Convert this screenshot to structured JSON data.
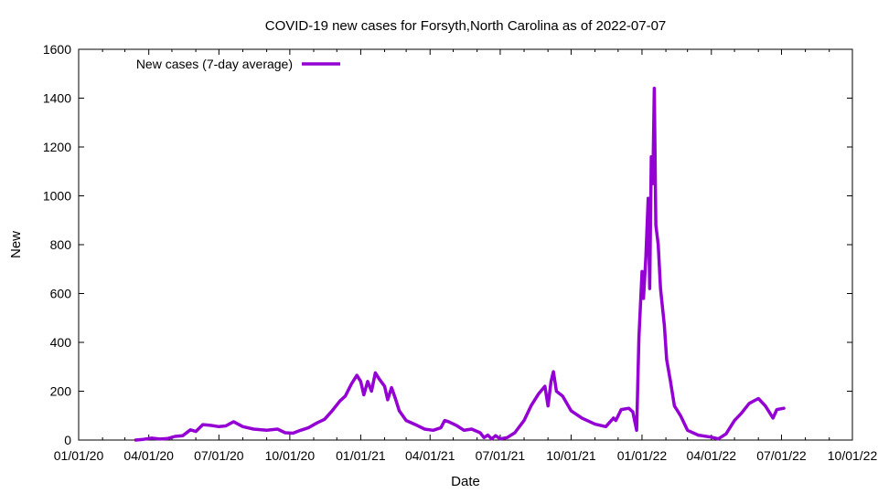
{
  "chart_data": {
    "type": "line",
    "title": "COVID-19 new cases for Forsyth,North Carolina as of 2022-07-07",
    "xlabel": "Date",
    "ylabel": "New",
    "xlim": [
      "2020-01-01",
      "2022-10-01"
    ],
    "ylim": [
      0,
      1600
    ],
    "x_ticks": [
      {
        "date": "2020-01-01",
        "label": "01/01/20"
      },
      {
        "date": "2020-04-01",
        "label": "04/01/20"
      },
      {
        "date": "2020-07-01",
        "label": "07/01/20"
      },
      {
        "date": "2020-10-01",
        "label": "10/01/20"
      },
      {
        "date": "2021-01-01",
        "label": "01/01/21"
      },
      {
        "date": "2021-04-01",
        "label": "04/01/21"
      },
      {
        "date": "2021-07-01",
        "label": "07/01/21"
      },
      {
        "date": "2021-10-01",
        "label": "10/01/21"
      },
      {
        "date": "2022-01-01",
        "label": "01/01/22"
      },
      {
        "date": "2022-04-01",
        "label": "04/01/22"
      },
      {
        "date": "2022-07-01",
        "label": "07/01/22"
      },
      {
        "date": "2022-10-01",
        "label": "10/01/22"
      }
    ],
    "y_ticks": [
      0,
      200,
      400,
      600,
      800,
      1000,
      1200,
      1400,
      1600
    ],
    "grid": false,
    "legend": {
      "position": "top-left"
    },
    "series": [
      {
        "name": "New cases (7-day average)",
        "color": "#9400d3",
        "points": [
          [
            "2020-03-15",
            0
          ],
          [
            "2020-03-25",
            3
          ],
          [
            "2020-04-05",
            8
          ],
          [
            "2020-04-15",
            4
          ],
          [
            "2020-04-25",
            6
          ],
          [
            "2020-05-05",
            15
          ],
          [
            "2020-05-15",
            18
          ],
          [
            "2020-05-25",
            42
          ],
          [
            "2020-06-01",
            35
          ],
          [
            "2020-06-10",
            63
          ],
          [
            "2020-06-20",
            60
          ],
          [
            "2020-07-01",
            55
          ],
          [
            "2020-07-10",
            58
          ],
          [
            "2020-07-20",
            75
          ],
          [
            "2020-08-01",
            55
          ],
          [
            "2020-08-15",
            45
          ],
          [
            "2020-09-01",
            40
          ],
          [
            "2020-09-15",
            45
          ],
          [
            "2020-09-25",
            30
          ],
          [
            "2020-10-05",
            28
          ],
          [
            "2020-10-15",
            40
          ],
          [
            "2020-10-25",
            50
          ],
          [
            "2020-11-05",
            70
          ],
          [
            "2020-11-15",
            85
          ],
          [
            "2020-11-25",
            120
          ],
          [
            "2020-12-05",
            160
          ],
          [
            "2020-12-12",
            180
          ],
          [
            "2020-12-20",
            230
          ],
          [
            "2020-12-27",
            265
          ],
          [
            "2021-01-01",
            240
          ],
          [
            "2021-01-05",
            185
          ],
          [
            "2021-01-10",
            240
          ],
          [
            "2021-01-15",
            200
          ],
          [
            "2021-01-20",
            275
          ],
          [
            "2021-01-25",
            250
          ],
          [
            "2021-02-01",
            220
          ],
          [
            "2021-02-05",
            165
          ],
          [
            "2021-02-10",
            215
          ],
          [
            "2021-02-15",
            170
          ],
          [
            "2021-02-20",
            120
          ],
          [
            "2021-03-01",
            80
          ],
          [
            "2021-03-15",
            60
          ],
          [
            "2021-03-25",
            45
          ],
          [
            "2021-04-05",
            40
          ],
          [
            "2021-04-15",
            50
          ],
          [
            "2021-04-20",
            80
          ],
          [
            "2021-04-25",
            75
          ],
          [
            "2021-05-05",
            60
          ],
          [
            "2021-05-15",
            40
          ],
          [
            "2021-05-25",
            45
          ],
          [
            "2021-06-05",
            30
          ],
          [
            "2021-06-10",
            10
          ],
          [
            "2021-06-15",
            20
          ],
          [
            "2021-06-20",
            5
          ],
          [
            "2021-06-25",
            18
          ],
          [
            "2021-07-01",
            5
          ],
          [
            "2021-07-10",
            10
          ],
          [
            "2021-07-20",
            30
          ],
          [
            "2021-08-01",
            80
          ],
          [
            "2021-08-10",
            140
          ],
          [
            "2021-08-20",
            190
          ],
          [
            "2021-08-28",
            220
          ],
          [
            "2021-09-01",
            140
          ],
          [
            "2021-09-05",
            240
          ],
          [
            "2021-09-08",
            280
          ],
          [
            "2021-09-12",
            200
          ],
          [
            "2021-09-20",
            180
          ],
          [
            "2021-10-01",
            120
          ],
          [
            "2021-10-15",
            90
          ],
          [
            "2021-11-01",
            65
          ],
          [
            "2021-11-15",
            55
          ],
          [
            "2021-11-25",
            90
          ],
          [
            "2021-11-28",
            80
          ],
          [
            "2021-12-05",
            125
          ],
          [
            "2021-12-15",
            130
          ],
          [
            "2021-12-20",
            115
          ],
          [
            "2021-12-25",
            40
          ],
          [
            "2021-12-28",
            420
          ],
          [
            "2022-01-01",
            690
          ],
          [
            "2022-01-03",
            580
          ],
          [
            "2022-01-06",
            750
          ],
          [
            "2022-01-09",
            990
          ],
          [
            "2022-01-11",
            620
          ],
          [
            "2022-01-13",
            1160
          ],
          [
            "2022-01-15",
            1050
          ],
          [
            "2022-01-17",
            1440
          ],
          [
            "2022-01-19",
            880
          ],
          [
            "2022-01-22",
            800
          ],
          [
            "2022-01-25",
            620
          ],
          [
            "2022-01-30",
            470
          ],
          [
            "2022-02-02",
            330
          ],
          [
            "2022-02-07",
            240
          ],
          [
            "2022-02-12",
            140
          ],
          [
            "2022-02-20",
            100
          ],
          [
            "2022-03-01",
            40
          ],
          [
            "2022-03-15",
            20
          ],
          [
            "2022-04-01",
            12
          ],
          [
            "2022-04-10",
            5
          ],
          [
            "2022-04-20",
            25
          ],
          [
            "2022-05-01",
            80
          ],
          [
            "2022-05-10",
            110
          ],
          [
            "2022-05-20",
            150
          ],
          [
            "2022-06-01",
            170
          ],
          [
            "2022-06-10",
            140
          ],
          [
            "2022-06-20",
            90
          ],
          [
            "2022-06-25",
            125
          ],
          [
            "2022-07-04",
            130
          ]
        ]
      }
    ]
  }
}
